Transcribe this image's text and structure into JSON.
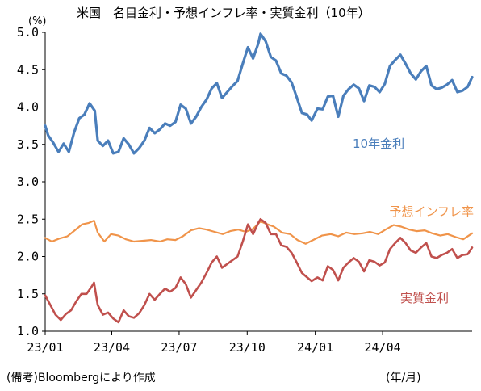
{
  "chart_data": {
    "type": "line",
    "title": "米国　名目金利・予想インフレ率・実質金利（10年）",
    "ylabel": "(%)",
    "xlabel": "(年/月)",
    "ylim": [
      1.0,
      5.0
    ],
    "yticks": [
      "5.0",
      "4.5",
      "4.0",
      "3.5",
      "3.0",
      "2.5",
      "2.0",
      "1.5",
      "1.0"
    ],
    "xlim": [
      "2023-01-01",
      "2024-07-31"
    ],
    "xticks": [
      {
        "label": "23/01",
        "date": "2023-01-01"
      },
      {
        "label": "23/04",
        "date": "2023-04-01"
      },
      {
        "label": "23/07",
        "date": "2023-07-01"
      },
      {
        "label": "23/10",
        "date": "2023-10-01"
      },
      {
        "label": "24/01",
        "date": "2024-01-01"
      },
      {
        "label": "24/04",
        "date": "2024-04-01"
      }
    ],
    "grid": false,
    "note": "(備考)Bloombergにより作成",
    "series": [
      {
        "name": "10年金利",
        "color": "#4a7ebb",
        "points": [
          [
            "2023-01-01",
            3.75
          ],
          [
            "2023-01-05",
            3.62
          ],
          [
            "2023-01-12",
            3.52
          ],
          [
            "2023-01-19",
            3.4
          ],
          [
            "2023-01-26",
            3.51
          ],
          [
            "2023-02-02",
            3.4
          ],
          [
            "2023-02-09",
            3.66
          ],
          [
            "2023-02-16",
            3.85
          ],
          [
            "2023-02-23",
            3.9
          ],
          [
            "2023-03-02",
            4.05
          ],
          [
            "2023-03-09",
            3.95
          ],
          [
            "2023-03-13",
            3.55
          ],
          [
            "2023-03-20",
            3.48
          ],
          [
            "2023-03-27",
            3.55
          ],
          [
            "2023-04-03",
            3.38
          ],
          [
            "2023-04-10",
            3.4
          ],
          [
            "2023-04-17",
            3.58
          ],
          [
            "2023-04-24",
            3.5
          ],
          [
            "2023-05-01",
            3.38
          ],
          [
            "2023-05-08",
            3.45
          ],
          [
            "2023-05-15",
            3.55
          ],
          [
            "2023-05-22",
            3.72
          ],
          [
            "2023-05-29",
            3.65
          ],
          [
            "2023-06-05",
            3.7
          ],
          [
            "2023-06-12",
            3.78
          ],
          [
            "2023-06-19",
            3.75
          ],
          [
            "2023-06-26",
            3.8
          ],
          [
            "2023-07-03",
            4.03
          ],
          [
            "2023-07-10",
            3.98
          ],
          [
            "2023-07-17",
            3.78
          ],
          [
            "2023-07-24",
            3.87
          ],
          [
            "2023-07-31",
            4.0
          ],
          [
            "2023-08-07",
            4.1
          ],
          [
            "2023-08-14",
            4.25
          ],
          [
            "2023-08-21",
            4.32
          ],
          [
            "2023-08-28",
            4.12
          ],
          [
            "2023-09-04",
            4.2
          ],
          [
            "2023-09-11",
            4.28
          ],
          [
            "2023-09-18",
            4.35
          ],
          [
            "2023-09-25",
            4.58
          ],
          [
            "2023-10-02",
            4.8
          ],
          [
            "2023-10-09",
            4.65
          ],
          [
            "2023-10-16",
            4.85
          ],
          [
            "2023-10-19",
            4.98
          ],
          [
            "2023-10-26",
            4.88
          ],
          [
            "2023-11-02",
            4.67
          ],
          [
            "2023-11-09",
            4.62
          ],
          [
            "2023-11-16",
            4.45
          ],
          [
            "2023-11-23",
            4.42
          ],
          [
            "2023-11-30",
            4.33
          ],
          [
            "2023-12-07",
            4.13
          ],
          [
            "2023-12-14",
            3.92
          ],
          [
            "2023-12-21",
            3.9
          ],
          [
            "2023-12-27",
            3.82
          ],
          [
            "2024-01-04",
            3.98
          ],
          [
            "2024-01-11",
            3.97
          ],
          [
            "2024-01-18",
            4.14
          ],
          [
            "2024-01-25",
            4.15
          ],
          [
            "2024-02-01",
            3.87
          ],
          [
            "2024-02-08",
            4.15
          ],
          [
            "2024-02-15",
            4.24
          ],
          [
            "2024-02-22",
            4.3
          ],
          [
            "2024-02-29",
            4.25
          ],
          [
            "2024-03-07",
            4.08
          ],
          [
            "2024-03-14",
            4.29
          ],
          [
            "2024-03-21",
            4.27
          ],
          [
            "2024-03-28",
            4.2
          ],
          [
            "2024-04-04",
            4.31
          ],
          [
            "2024-04-11",
            4.55
          ],
          [
            "2024-04-18",
            4.63
          ],
          [
            "2024-04-25",
            4.7
          ],
          [
            "2024-05-02",
            4.58
          ],
          [
            "2024-05-09",
            4.45
          ],
          [
            "2024-05-16",
            4.37
          ],
          [
            "2024-05-23",
            4.48
          ],
          [
            "2024-05-30",
            4.55
          ],
          [
            "2024-06-06",
            4.29
          ],
          [
            "2024-06-13",
            4.24
          ],
          [
            "2024-06-20",
            4.26
          ],
          [
            "2024-06-27",
            4.3
          ],
          [
            "2024-07-04",
            4.36
          ],
          [
            "2024-07-11",
            4.2
          ],
          [
            "2024-07-18",
            4.22
          ],
          [
            "2024-07-25",
            4.27
          ],
          [
            "2024-07-31",
            4.4
          ]
        ]
      },
      {
        "name": "予想インフレ率",
        "color": "#f0944a",
        "points": [
          [
            "2023-01-01",
            2.25
          ],
          [
            "2023-01-10",
            2.2
          ],
          [
            "2023-01-20",
            2.24
          ],
          [
            "2023-01-31",
            2.27
          ],
          [
            "2023-02-10",
            2.35
          ],
          [
            "2023-02-20",
            2.43
          ],
          [
            "2023-03-01",
            2.45
          ],
          [
            "2023-03-08",
            2.48
          ],
          [
            "2023-03-13",
            2.32
          ],
          [
            "2023-03-22",
            2.2
          ],
          [
            "2023-03-31",
            2.3
          ],
          [
            "2023-04-10",
            2.28
          ],
          [
            "2023-04-20",
            2.23
          ],
          [
            "2023-05-01",
            2.2
          ],
          [
            "2023-05-12",
            2.21
          ],
          [
            "2023-05-24",
            2.22
          ],
          [
            "2023-06-05",
            2.2
          ],
          [
            "2023-06-15",
            2.23
          ],
          [
            "2023-06-26",
            2.22
          ],
          [
            "2023-07-06",
            2.27
          ],
          [
            "2023-07-17",
            2.35
          ],
          [
            "2023-07-28",
            2.38
          ],
          [
            "2023-08-07",
            2.36
          ],
          [
            "2023-08-18",
            2.33
          ],
          [
            "2023-08-29",
            2.3
          ],
          [
            "2023-09-08",
            2.34
          ],
          [
            "2023-09-19",
            2.36
          ],
          [
            "2023-09-29",
            2.33
          ],
          [
            "2023-10-09",
            2.37
          ],
          [
            "2023-10-19",
            2.47
          ],
          [
            "2023-10-26",
            2.44
          ],
          [
            "2023-11-06",
            2.4
          ],
          [
            "2023-11-17",
            2.32
          ],
          [
            "2023-11-28",
            2.3
          ],
          [
            "2023-12-08",
            2.22
          ],
          [
            "2023-12-19",
            2.17
          ],
          [
            "2023-12-29",
            2.22
          ],
          [
            "2024-01-10",
            2.28
          ],
          [
            "2024-01-22",
            2.3
          ],
          [
            "2024-02-01",
            2.27
          ],
          [
            "2024-02-12",
            2.32
          ],
          [
            "2024-02-23",
            2.3
          ],
          [
            "2024-03-05",
            2.31
          ],
          [
            "2024-03-15",
            2.33
          ],
          [
            "2024-03-26",
            2.3
          ],
          [
            "2024-04-05",
            2.36
          ],
          [
            "2024-04-16",
            2.42
          ],
          [
            "2024-04-26",
            2.4
          ],
          [
            "2024-05-07",
            2.36
          ],
          [
            "2024-05-17",
            2.34
          ],
          [
            "2024-05-28",
            2.35
          ],
          [
            "2024-06-07",
            2.31
          ],
          [
            "2024-06-18",
            2.28
          ],
          [
            "2024-06-28",
            2.3
          ],
          [
            "2024-07-09",
            2.26
          ],
          [
            "2024-07-19",
            2.23
          ],
          [
            "2024-07-31",
            2.31
          ]
        ]
      },
      {
        "name": "実質金利",
        "color": "#c0504d",
        "points": [
          [
            "2023-01-01",
            1.48
          ],
          [
            "2023-01-08",
            1.35
          ],
          [
            "2023-01-15",
            1.22
          ],
          [
            "2023-01-22",
            1.15
          ],
          [
            "2023-01-29",
            1.23
          ],
          [
            "2023-02-05",
            1.28
          ],
          [
            "2023-02-12",
            1.4
          ],
          [
            "2023-02-19",
            1.5
          ],
          [
            "2023-02-26",
            1.5
          ],
          [
            "2023-03-05",
            1.6
          ],
          [
            "2023-03-08",
            1.65
          ],
          [
            "2023-03-13",
            1.35
          ],
          [
            "2023-03-20",
            1.22
          ],
          [
            "2023-03-27",
            1.25
          ],
          [
            "2023-04-03",
            1.17
          ],
          [
            "2023-04-10",
            1.12
          ],
          [
            "2023-04-17",
            1.28
          ],
          [
            "2023-04-24",
            1.2
          ],
          [
            "2023-05-01",
            1.18
          ],
          [
            "2023-05-08",
            1.24
          ],
          [
            "2023-05-15",
            1.35
          ],
          [
            "2023-05-22",
            1.5
          ],
          [
            "2023-05-29",
            1.42
          ],
          [
            "2023-06-05",
            1.5
          ],
          [
            "2023-06-12",
            1.57
          ],
          [
            "2023-06-19",
            1.53
          ],
          [
            "2023-06-26",
            1.58
          ],
          [
            "2023-07-03",
            1.72
          ],
          [
            "2023-07-10",
            1.63
          ],
          [
            "2023-07-17",
            1.45
          ],
          [
            "2023-07-24",
            1.55
          ],
          [
            "2023-07-31",
            1.65
          ],
          [
            "2023-08-07",
            1.78
          ],
          [
            "2023-08-14",
            1.92
          ],
          [
            "2023-08-21",
            2.0
          ],
          [
            "2023-08-28",
            1.85
          ],
          [
            "2023-09-04",
            1.9
          ],
          [
            "2023-09-11",
            1.95
          ],
          [
            "2023-09-18",
            2.0
          ],
          [
            "2023-09-25",
            2.2
          ],
          [
            "2023-10-02",
            2.43
          ],
          [
            "2023-10-09",
            2.3
          ],
          [
            "2023-10-16",
            2.45
          ],
          [
            "2023-10-19",
            2.5
          ],
          [
            "2023-10-26",
            2.45
          ],
          [
            "2023-11-02",
            2.3
          ],
          [
            "2023-11-09",
            2.3
          ],
          [
            "2023-11-16",
            2.15
          ],
          [
            "2023-11-23",
            2.13
          ],
          [
            "2023-11-30",
            2.05
          ],
          [
            "2023-12-07",
            1.92
          ],
          [
            "2023-12-14",
            1.78
          ],
          [
            "2023-12-21",
            1.72
          ],
          [
            "2023-12-27",
            1.67
          ],
          [
            "2024-01-04",
            1.72
          ],
          [
            "2024-01-11",
            1.68
          ],
          [
            "2024-01-18",
            1.87
          ],
          [
            "2024-01-25",
            1.82
          ],
          [
            "2024-02-01",
            1.68
          ],
          [
            "2024-02-08",
            1.85
          ],
          [
            "2024-02-15",
            1.92
          ],
          [
            "2024-02-22",
            1.98
          ],
          [
            "2024-02-29",
            1.93
          ],
          [
            "2024-03-07",
            1.8
          ],
          [
            "2024-03-14",
            1.95
          ],
          [
            "2024-03-21",
            1.93
          ],
          [
            "2024-03-28",
            1.88
          ],
          [
            "2024-04-04",
            1.92
          ],
          [
            "2024-04-11",
            2.1
          ],
          [
            "2024-04-18",
            2.18
          ],
          [
            "2024-04-25",
            2.25
          ],
          [
            "2024-05-02",
            2.18
          ],
          [
            "2024-05-09",
            2.08
          ],
          [
            "2024-05-16",
            2.05
          ],
          [
            "2024-05-23",
            2.12
          ],
          [
            "2024-05-30",
            2.18
          ],
          [
            "2024-06-06",
            2.0
          ],
          [
            "2024-06-13",
            1.98
          ],
          [
            "2024-06-20",
            2.02
          ],
          [
            "2024-06-27",
            2.05
          ],
          [
            "2024-07-04",
            2.1
          ],
          [
            "2024-07-11",
            1.98
          ],
          [
            "2024-07-18",
            2.02
          ],
          [
            "2024-07-25",
            2.03
          ],
          [
            "2024-07-31",
            2.12
          ]
        ]
      }
    ]
  }
}
